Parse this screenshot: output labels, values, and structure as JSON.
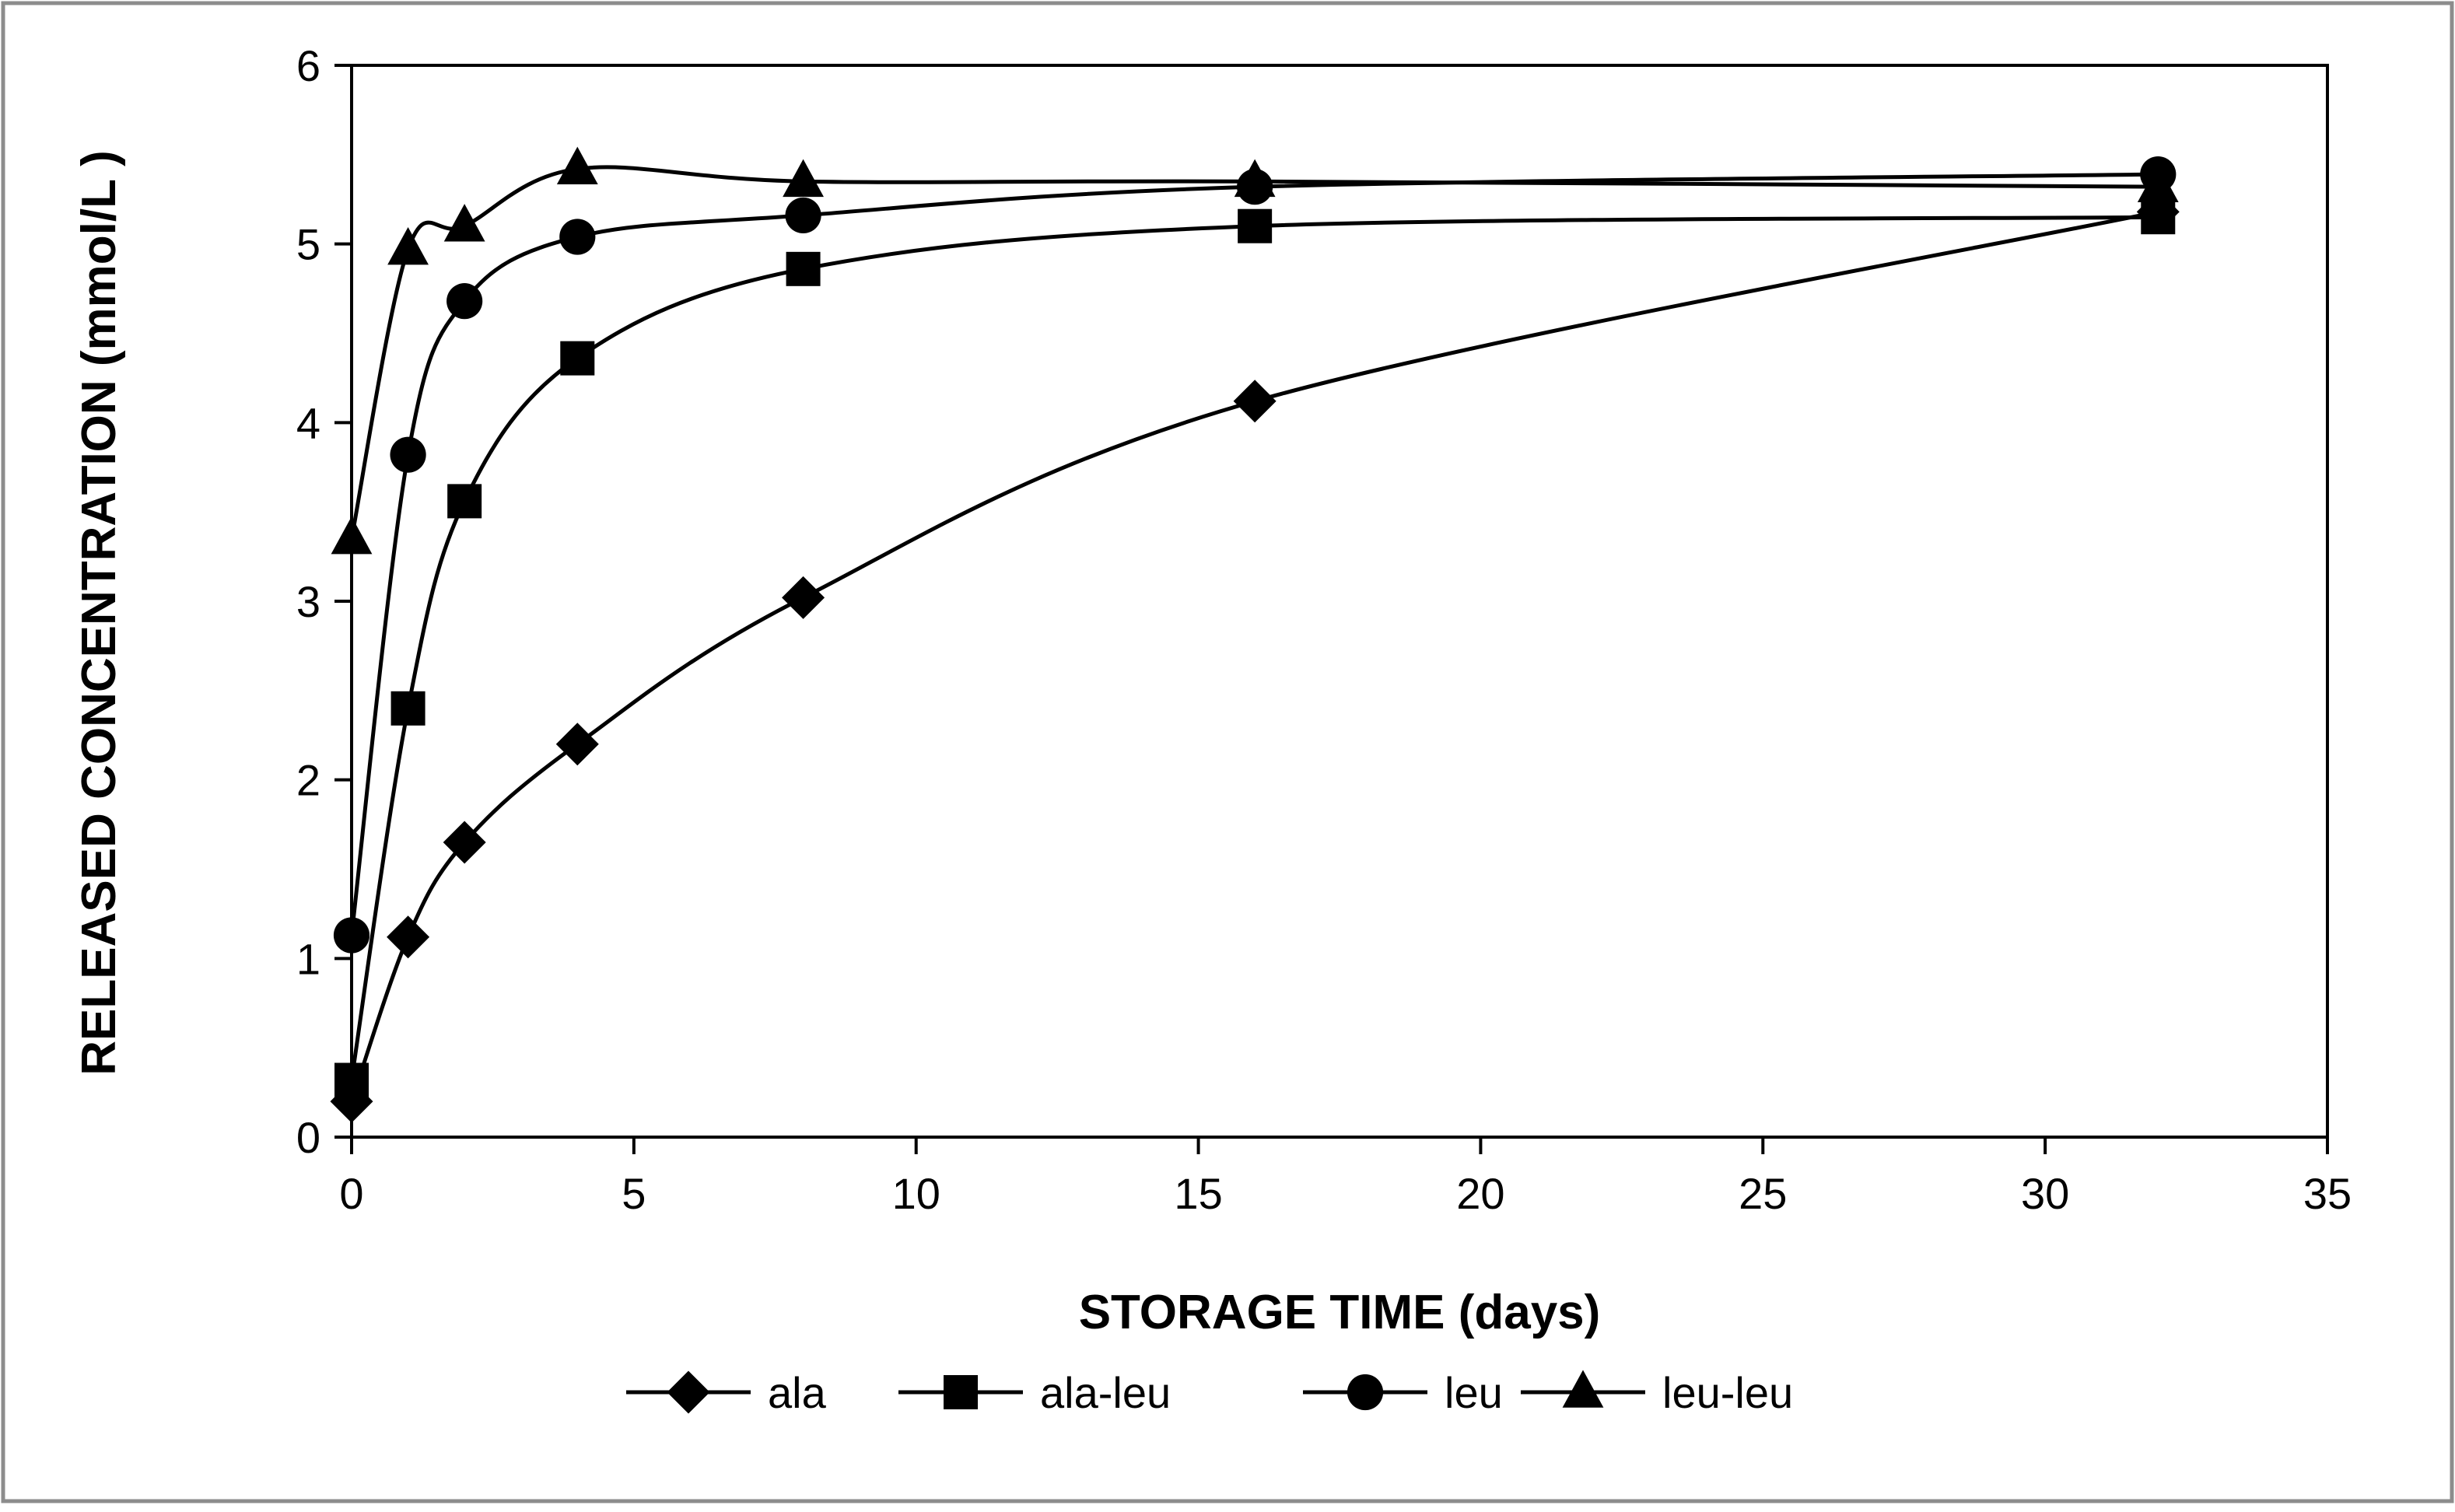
{
  "chart_data": {
    "type": "line",
    "title": "",
    "xlabel": "STORAGE TIME (days)",
    "ylabel": "RELEASED CONCENTRATION (mmol/L )",
    "xlim": [
      0,
      35
    ],
    "ylim": [
      0,
      6
    ],
    "xticks": [
      0,
      5,
      10,
      15,
      20,
      25,
      30,
      35
    ],
    "yticks": [
      0,
      1,
      2,
      3,
      4,
      5,
      6
    ],
    "grid": false,
    "legend_position": "bottom",
    "x": [
      0,
      1,
      2,
      4,
      8,
      16,
      32
    ],
    "series": [
      {
        "name": "ala",
        "marker": "diamond",
        "values": [
          0.2,
          1.12,
          1.65,
          2.2,
          3.02,
          4.12,
          5.18
        ]
      },
      {
        "name": "ala-leu",
        "marker": "square",
        "values": [
          0.32,
          2.4,
          3.56,
          4.36,
          4.86,
          5.1,
          5.15
        ]
      },
      {
        "name": "leu",
        "marker": "circle",
        "values": [
          1.13,
          3.82,
          4.68,
          5.04,
          5.16,
          5.32,
          5.39
        ]
      },
      {
        "name": "leu-leu",
        "marker": "triangle",
        "values": [
          3.35,
          4.97,
          5.1,
          5.42,
          5.35,
          5.35,
          5.32
        ]
      }
    ],
    "colors": {
      "line": "#000000",
      "frame": "#8c8c8c",
      "background": "#ffffff"
    }
  }
}
